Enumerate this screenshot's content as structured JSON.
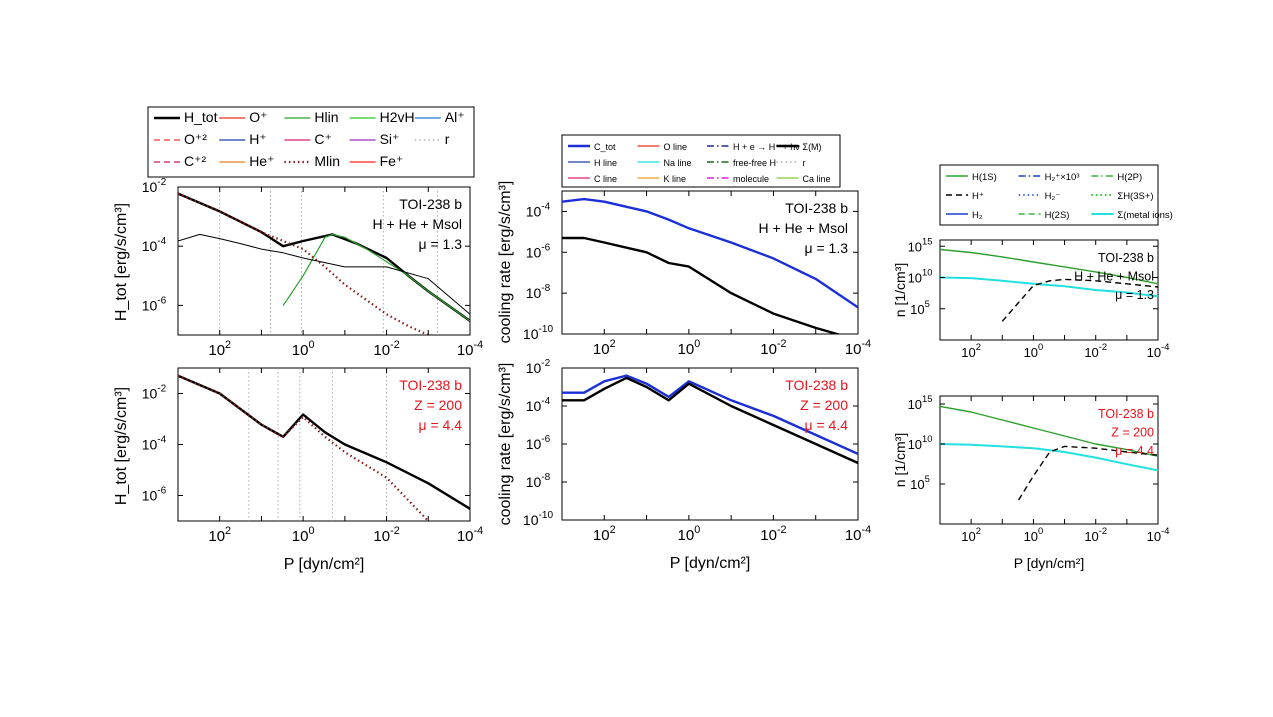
{
  "figure": {
    "left": {
      "legend": [
        {
          "label": "H_tot",
          "color": "#000000",
          "dash": "solid",
          "width": 2.4
        },
        {
          "label": "O⁺",
          "color": "#e8301c",
          "dash": "solid",
          "width": 1.2
        },
        {
          "label": "Hlin",
          "color": "#2ca02c",
          "dash": "solid",
          "width": 1.2
        },
        {
          "label": "H2vH",
          "color": "#22cc22",
          "dash": "solid",
          "width": 1.2
        },
        {
          "label": "Al⁺",
          "color": "#1f77d4",
          "dash": "solid",
          "width": 1.2
        },
        {
          "label": "O⁺²",
          "color": "#ff3333",
          "dash": "dash",
          "width": 1.2
        },
        {
          "label": "H⁺",
          "color": "#1a3fa8",
          "dash": "solid",
          "width": 1.2
        },
        {
          "label": "C⁺",
          "color": "#e0206a",
          "dash": "solid",
          "width": 1.2
        },
        {
          "label": "Si⁺",
          "color": "#9b2fc2",
          "dash": "solid",
          "width": 1.2
        },
        {
          "label": "r",
          "color": "#888888",
          "dash": "dot",
          "width": 1.0
        },
        {
          "label": "C⁺²",
          "color": "#cc1155",
          "dash": "dash",
          "width": 1.2
        },
        {
          "label": "He⁺",
          "color": "#e8821a",
          "dash": "solid",
          "width": 1.2
        },
        {
          "label": "Mlin",
          "color": "#8b1a1a",
          "dash": "dot",
          "width": 2.2
        },
        {
          "label": "Fe⁺",
          "color": "#ff2222",
          "dash": "solid",
          "width": 1.2
        }
      ],
      "ylabel": "H_tot [erg/s/cm³]",
      "xlabel": "P [dyn/cm²]",
      "panels": [
        {
          "title": [
            "TOI-238 b",
            "H + He + Msol",
            "μ = 1.3"
          ],
          "title_color": "#000000"
        },
        {
          "title": [
            "TOI-238 b",
            "Z = 200",
            "μ = 4.4"
          ],
          "title_color": "#e8141c"
        }
      ]
    },
    "middle": {
      "legend": [
        {
          "label": "C_tot",
          "color": "#1a2fd8",
          "dash": "solid",
          "width": 2.4
        },
        {
          "label": "O line",
          "color": "#e8301c",
          "dash": "solid",
          "width": 1.2
        },
        {
          "label": "H + e → H⁻ + hν",
          "color": "#1a2f8f",
          "dash": "dashdot",
          "width": 1.4
        },
        {
          "label": "Σ(M)",
          "color": "#000000",
          "dash": "solid",
          "width": 2.4
        },
        {
          "label": "H line",
          "color": "#1a3fa8",
          "dash": "solid",
          "width": 1.2
        },
        {
          "label": "Na line",
          "color": "#22e0e0",
          "dash": "solid",
          "width": 1.2
        },
        {
          "label": "free-free H",
          "color": "#1f6b1f",
          "dash": "dashdot",
          "width": 1.4
        },
        {
          "label": "r",
          "color": "#888888",
          "dash": "dot",
          "width": 1.0
        },
        {
          "label": "C line",
          "color": "#e0206a",
          "dash": "solid",
          "width": 1.2
        },
        {
          "label": "K line",
          "color": "#f0a020",
          "dash": "solid",
          "width": 1.2
        },
        {
          "label": "molecule",
          "color": "#e020e0",
          "dash": "dashdot",
          "width": 1.4
        },
        {
          "label": "Ca line",
          "color": "#88cc33",
          "dash": "solid",
          "width": 1.2
        }
      ],
      "ylabel": "cooling rate [erg/s/cm³]",
      "xlabel": "P [dyn/cm²]",
      "panels": [
        {
          "title": [
            "TOI-238 b",
            "H + He + Msol",
            "μ = 1.3"
          ],
          "title_color": "#000000"
        },
        {
          "title": [
            "TOI-238 b",
            "Z = 200",
            "μ = 4.4"
          ],
          "title_color": "#e8141c"
        }
      ]
    },
    "right": {
      "legend": [
        {
          "label": "H(1S)",
          "color": "#2ca02c",
          "dash": "solid",
          "width": 1.4
        },
        {
          "label": "H₂⁺×10³",
          "color": "#1a3fd8",
          "dash": "dashdot",
          "width": 1.4
        },
        {
          "label": "H(2P)",
          "color": "#33bb33",
          "dash": "dashdot",
          "width": 1.4
        },
        {
          "label": "H⁺",
          "color": "#000000",
          "dash": "dash",
          "width": 1.4
        },
        {
          "label": "H₂⁻",
          "color": "#1a3fd8",
          "dash": "dot",
          "width": 1.4
        },
        {
          "label": "ΣH(3S+)",
          "color": "#22cc22",
          "dash": "dot",
          "width": 2.0
        },
        {
          "label": "H₂",
          "color": "#1a3fd8",
          "dash": "solid",
          "width": 1.4
        },
        {
          "label": "H(2S)",
          "color": "#33bb33",
          "dash": "dash",
          "width": 1.4
        },
        {
          "label": "Σ(metal ions)",
          "color": "#22e0e0",
          "dash": "solid",
          "width": 2.0
        }
      ],
      "ylabel": "n [1/cm³]",
      "xlabel": "P [dyn/cm²]",
      "panels": [
        {
          "title": [
            "TOI-238 b",
            "H + He + Msol",
            "μ = 1.3"
          ],
          "title_color": "#000000"
        },
        {
          "title": [
            "TOI-238 b",
            "Z = 200",
            "μ = 4.4"
          ],
          "title_color": "#e8141c"
        }
      ]
    }
  },
  "chart_data": [
    {
      "type": "line",
      "title": "TOI-238 b / H + He + Msol / μ = 1.3",
      "xlabel": "",
      "ylabel": "H_tot [erg/s/cm³]",
      "xscale": "log",
      "xaxis_reversed": true,
      "xlim": [
        1000,
        0.0001
      ],
      "yscale": "log",
      "ylim": [
        1e-07,
        0.01
      ],
      "x_ticks": [
        "10^2",
        "10^0",
        "10^-2",
        "10^-4"
      ],
      "y_ticks": [
        "10^-6",
        "10^-4",
        "10^-2"
      ],
      "vlines": [
        100,
        6,
        1.1,
        0.012,
        0.0006
      ],
      "series": [
        {
          "name": "H_tot",
          "x": [
            1000,
            100,
            10,
            3,
            1,
            0.2,
            0.05,
            0.01,
            0.003,
            0.001,
            0.0001
          ],
          "y": [
            0.006,
            0.0015,
            0.0003,
            0.0001,
            0.00015,
            0.00025,
            0.00012,
            4e-05,
            1e-05,
            3e-06,
            3e-07
          ]
        },
        {
          "name": "Mlin",
          "x": [
            1000,
            100,
            10,
            3,
            1,
            0.3,
            0.1,
            0.03,
            0.01,
            0.003,
            0.001
          ],
          "y": [
            0.006,
            0.0015,
            0.0003,
            0.00015,
            8e-05,
            2e-05,
            5e-06,
            1.5e-06,
            5e-07,
            2e-07,
            1e-07
          ]
        },
        {
          "name": "Hlin",
          "x": [
            3,
            1,
            0.3,
            0.2,
            0.1,
            0.03,
            0.01,
            0.003,
            0.001,
            0.0001
          ],
          "y": [
            1e-06,
            1e-05,
            0.0002,
            0.00025,
            0.0002,
            8e-05,
            3e-05,
            1e-05,
            3e-06,
            3e-07
          ]
        },
        {
          "name": "black-thin",
          "x": [
            1000,
            300,
            100,
            30,
            10,
            3,
            1,
            0.1,
            0.01,
            0.001,
            0.0001
          ],
          "y": [
            0.00015,
            0.00025,
            0.00018,
            0.00012,
            8e-05,
            6e-05,
            4e-05,
            2e-05,
            2e-05,
            8e-06,
            5e-07
          ]
        }
      ]
    },
    {
      "type": "line",
      "title": "TOI-238 b / Z = 200 / μ = 4.4",
      "xlabel": "P [dyn/cm²]",
      "ylabel": "H_tot [erg/s/cm³]",
      "xscale": "log",
      "xaxis_reversed": true,
      "xlim": [
        1000,
        0.0001
      ],
      "yscale": "log",
      "ylim": [
        1e-07,
        0.1
      ],
      "x_ticks": [
        "10^2",
        "10^0",
        "10^-2",
        "10^-4"
      ],
      "y_ticks": [
        "10^-6",
        "10^-4",
        "10^-2"
      ],
      "vlines": [
        20,
        4,
        1.2,
        0.2,
        0.01
      ],
      "series": [
        {
          "name": "H_tot",
          "x": [
            1000,
            100,
            10,
            3,
            1,
            0.3,
            0.1,
            0.01,
            0.001,
            0.0001
          ],
          "y": [
            0.05,
            0.01,
            0.0006,
            0.0002,
            0.0015,
            0.0003,
            0.0001,
            2e-05,
            3e-06,
            3e-07
          ]
        },
        {
          "name": "Mlin",
          "x": [
            1000,
            100,
            10,
            3,
            1,
            0.3,
            0.1,
            0.01,
            0.001
          ],
          "y": [
            0.05,
            0.01,
            0.0006,
            0.0002,
            0.0012,
            0.0002,
            5e-05,
            5e-06,
            1e-07
          ]
        }
      ]
    },
    {
      "type": "line",
      "title": "TOI-238 b / H + He + Msol / μ = 1.3",
      "xlabel": "",
      "ylabel": "cooling rate [erg/s/cm³]",
      "xscale": "log",
      "xaxis_reversed": true,
      "xlim": [
        1000,
        0.0001
      ],
      "yscale": "log",
      "ylim": [
        1e-10,
        0.001
      ],
      "x_ticks": [
        "10^2",
        "10^0",
        "10^-2",
        "10^-4"
      ],
      "y_ticks": [
        "10^-10",
        "10^-8",
        "10^-6",
        "10^-4"
      ],
      "series": [
        {
          "name": "C_tot",
          "x": [
            1000,
            300,
            100,
            10,
            3,
            1,
            0.1,
            0.01,
            0.001,
            0.0001
          ],
          "y": [
            0.0003,
            0.0004,
            0.0003,
            0.0001,
            4e-05,
            1.5e-05,
            3e-06,
            5e-07,
            5e-08,
            2e-09
          ]
        },
        {
          "name": "Σ(M)",
          "x": [
            1000,
            300,
            100,
            10,
            3,
            1,
            0.1,
            0.01,
            0.001,
            0.0001
          ],
          "y": [
            5e-06,
            5e-06,
            3e-06,
            1e-06,
            3e-07,
            2e-07,
            1e-08,
            1e-09,
            2e-10,
            5e-11
          ]
        }
      ]
    },
    {
      "type": "line",
      "title": "TOI-238 b / Z = 200 / μ = 4.4",
      "xlabel": "P [dyn/cm²]",
      "ylabel": "cooling rate [erg/s/cm³]",
      "xscale": "log",
      "xaxis_reversed": true,
      "xlim": [
        1000,
        0.0001
      ],
      "yscale": "log",
      "ylim": [
        1e-10,
        0.01
      ],
      "x_ticks": [
        "10^2",
        "10^0",
        "10^-2",
        "10^-4"
      ],
      "y_ticks": [
        "10^-10",
        "10^-8",
        "10^-6",
        "10^-4",
        "10^-2"
      ],
      "series": [
        {
          "name": "C_tot",
          "x": [
            1000,
            300,
            100,
            30,
            10,
            3,
            1,
            0.1,
            0.01,
            0.001,
            0.0001
          ],
          "y": [
            0.0005,
            0.0005,
            0.002,
            0.004,
            0.0015,
            0.0003,
            0.002,
            0.0002,
            3e-05,
            3e-06,
            3e-07
          ]
        },
        {
          "name": "Σ(M)",
          "x": [
            1000,
            300,
            100,
            30,
            10,
            3,
            1,
            0.1,
            0.01,
            0.001,
            0.0001
          ],
          "y": [
            0.0002,
            0.0002,
            0.0008,
            0.003,
            0.001,
            0.0002,
            0.0015,
            0.0001,
            1e-05,
            1e-06,
            1e-07
          ]
        }
      ]
    },
    {
      "type": "line",
      "title": "TOI-238 b / H + He + Msol / μ = 1.3",
      "xlabel": "",
      "ylabel": "n [1/cm³]",
      "xscale": "log",
      "xaxis_reversed": true,
      "xlim": [
        1000,
        0.0001
      ],
      "yscale": "log",
      "ylim": [
        1,
        1e+16
      ],
      "x_ticks": [
        "10^2",
        "10^0",
        "10^-2",
        "10^-4"
      ],
      "y_ticks": [
        "10^5",
        "10^10",
        "10^15"
      ],
      "series": [
        {
          "name": "H(1S)",
          "x": [
            1000,
            100,
            10,
            1,
            0.1,
            0.01,
            0.001,
            0.0001
          ],
          "y": [
            300000000000000.0,
            100000000000000.0,
            20000000000000.0,
            3000000000000.0,
            500000000000.0,
            80000000000.0,
            10000000000.0,
            1000000000.0
          ]
        },
        {
          "name": "Σ(metal ions)",
          "x": [
            1000,
            100,
            10,
            1,
            0.1,
            0.01,
            0.001,
            0.0001
          ],
          "y": [
            10000000000.0,
            8000000000.0,
            3000000000.0,
            1000000000.0,
            400000000.0,
            100000000.0,
            40000000.0,
            10000000.0
          ]
        },
        {
          "name": "H⁺",
          "x": [
            10,
            3,
            1,
            0.3,
            0.1,
            0.01,
            0.001,
            0.0001
          ],
          "y": [
            1000,
            1000000.0,
            500000000.0,
            3000000000.0,
            5000000000.0,
            3000000000.0,
            1000000000.0,
            300000000.0
          ]
        }
      ]
    },
    {
      "type": "line",
      "title": "TOI-238 b / Z = 200 / μ = 4.4",
      "xlabel": "P [dyn/cm²]",
      "ylabel": "n [1/cm³]",
      "xscale": "log",
      "xaxis_reversed": true,
      "xlim": [
        1000,
        0.0001
      ],
      "yscale": "log",
      "ylim": [
        1,
        1e+16
      ],
      "x_ticks": [
        "10^2",
        "10^0",
        "10^-2",
        "10^-4"
      ],
      "y_ticks": [
        "10^5",
        "10^10",
        "10^15"
      ],
      "series": [
        {
          "name": "H(1S)",
          "x": [
            1000,
            100,
            10,
            1,
            0.1,
            0.01,
            0.001,
            0.0001
          ],
          "y": [
            500000000000000.0,
            100000000000000.0,
            10000000000000.0,
            1000000000000.0,
            100000000000.0,
            10000000000.0,
            2000000000.0,
            300000000.0
          ]
        },
        {
          "name": "Σ(metal ions)",
          "x": [
            1000,
            100,
            10,
            1,
            0.1,
            0.01,
            0.001,
            0.0001
          ],
          "y": [
            10000000000.0,
            8000000000.0,
            5000000000.0,
            3000000000.0,
            1000000000.0,
            200000000.0,
            30000000.0,
            5000000.0
          ]
        },
        {
          "name": "H⁺",
          "x": [
            3,
            1,
            0.3,
            0.1,
            0.01,
            0.001,
            0.0001
          ],
          "y": [
            1000,
            1000000.0,
            1000000000.0,
            5000000000.0,
            3000000000.0,
            1000000000.0,
            400000000.0
          ]
        }
      ]
    }
  ]
}
